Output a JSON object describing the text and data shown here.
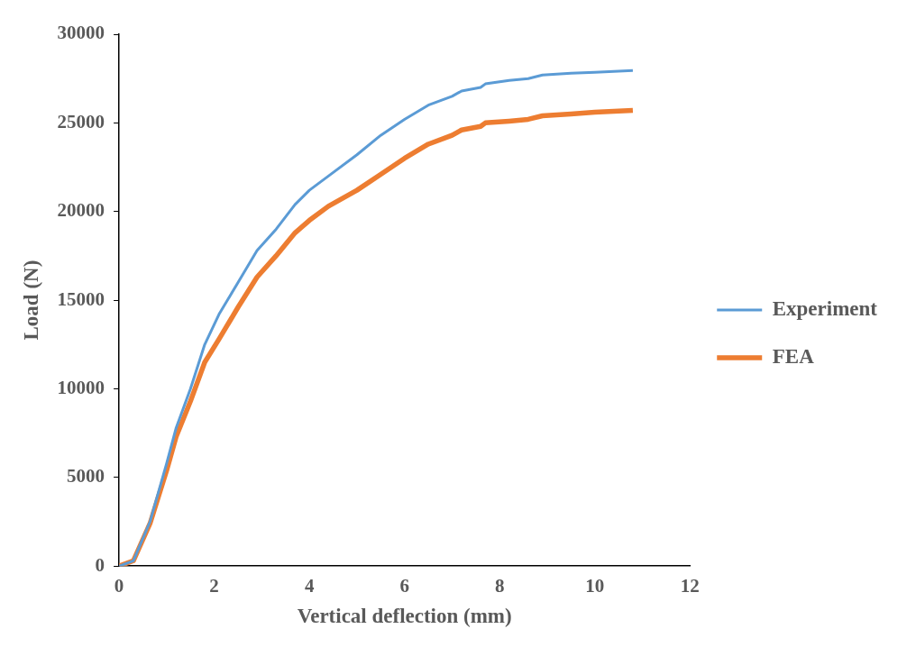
{
  "chart_data": {
    "type": "line",
    "xlabel": "Vertical deflection (mm)",
    "ylabel": "Load (N)",
    "xlim": [
      0,
      12
    ],
    "xticks": [
      0,
      2,
      4,
      6,
      8,
      10,
      12
    ],
    "ylim": [
      0,
      30000
    ],
    "yticks": [
      0,
      5000,
      10000,
      15000,
      20000,
      25000,
      30000
    ],
    "grid": false,
    "legend": "right",
    "marker": "none",
    "line_style": "solid",
    "series": [
      {
        "name": "Experiment",
        "color": "#5b9bd5",
        "x": [
          0,
          0.3,
          0.65,
          1.0,
          1.2,
          1.5,
          1.8,
          2.1,
          2.5,
          2.9,
          3.3,
          3.7,
          4.0,
          4.4,
          5.0,
          5.5,
          6.0,
          6.5,
          7.0,
          7.2,
          7.6,
          7.7,
          8.2,
          8.6,
          8.9,
          9.5,
          10.0,
          10.8
        ],
        "values": [
          0,
          300,
          2500,
          5800,
          7800,
          10000,
          12500,
          14200,
          16000,
          17800,
          19000,
          20400,
          21200,
          22000,
          23200,
          24300,
          25200,
          26000,
          26500,
          26800,
          27000,
          27200,
          27400,
          27500,
          27700,
          27800,
          27850,
          27950
        ]
      },
      {
        "name": "FEA",
        "color": "#ed7d31",
        "x": [
          0,
          0.3,
          0.65,
          1.0,
          1.2,
          1.5,
          1.8,
          2.1,
          2.5,
          2.9,
          3.3,
          3.7,
          4.0,
          4.4,
          5.0,
          5.5,
          6.0,
          6.5,
          7.0,
          7.2,
          7.6,
          7.7,
          8.2,
          8.6,
          8.9,
          9.5,
          10.0,
          10.8
        ],
        "values": [
          0,
          300,
          2400,
          5400,
          7300,
          9300,
          11500,
          12800,
          14600,
          16300,
          17500,
          18800,
          19500,
          20300,
          21200,
          22100,
          23000,
          23800,
          24300,
          24600,
          24800,
          25000,
          25100,
          25200,
          25400,
          25500,
          25600,
          25700
        ]
      }
    ]
  }
}
